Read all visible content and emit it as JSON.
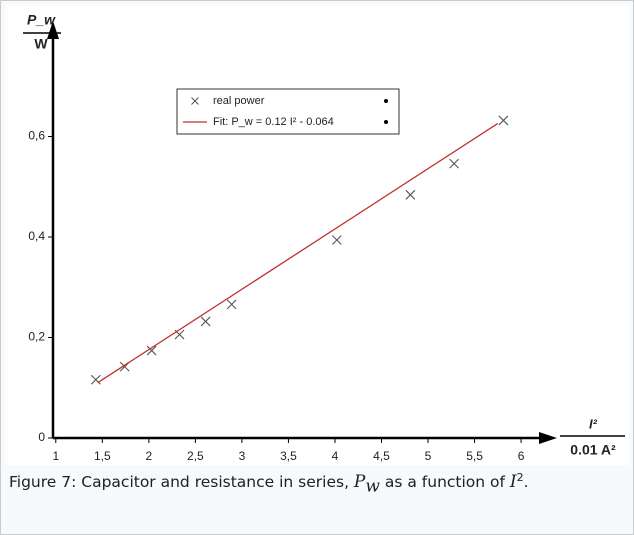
{
  "chart_data": {
    "type": "scatter",
    "y_label": {
      "quantity": "P_w",
      "unit": "W"
    },
    "x_label": {
      "quantity": "I²",
      "unit": "0.01 A²"
    },
    "series": [
      {
        "name": "real power",
        "color": "#555555",
        "marker": "x",
        "x": [
          1.43,
          1.74,
          2.03,
          2.33,
          2.61,
          2.89,
          4.02,
          4.81,
          5.28,
          5.81
        ],
        "values": [
          0.116,
          0.142,
          0.174,
          0.206,
          0.232,
          0.266,
          0.394,
          0.484,
          0.546,
          0.632
        ]
      },
      {
        "name": "Fit: P_w = 0.12 I² - 0.064",
        "color": "#c03030",
        "marker": "line",
        "x": [
          1.45,
          5.75
        ],
        "values": [
          0.11,
          0.626
        ]
      }
    ],
    "xlim": [
      0.97,
      6.3
    ],
    "xticks": [
      1,
      {
        "value": 1.5,
        "label": "1,5"
      },
      2,
      {
        "value": 2.5,
        "label": "2,5"
      },
      3,
      {
        "value": 3.5,
        "label": "3,5"
      },
      4,
      {
        "value": 4.5,
        "label": "4,5"
      },
      5,
      {
        "value": 5.5,
        "label": "5,5"
      },
      6
    ],
    "ylim": [
      0,
      0.81
    ],
    "yticks": [
      0,
      {
        "value": 0.2,
        "label": "0,2"
      },
      {
        "value": 0.4,
        "label": "0,4"
      },
      {
        "value": 0.6,
        "label": "0,6"
      }
    ],
    "grid": false
  },
  "caption": [
    "Figure 7: Capacitor and resistance in series, ",
    "P",
    "w",
    " as a function of ",
    "I",
    "2",
    "."
  ]
}
